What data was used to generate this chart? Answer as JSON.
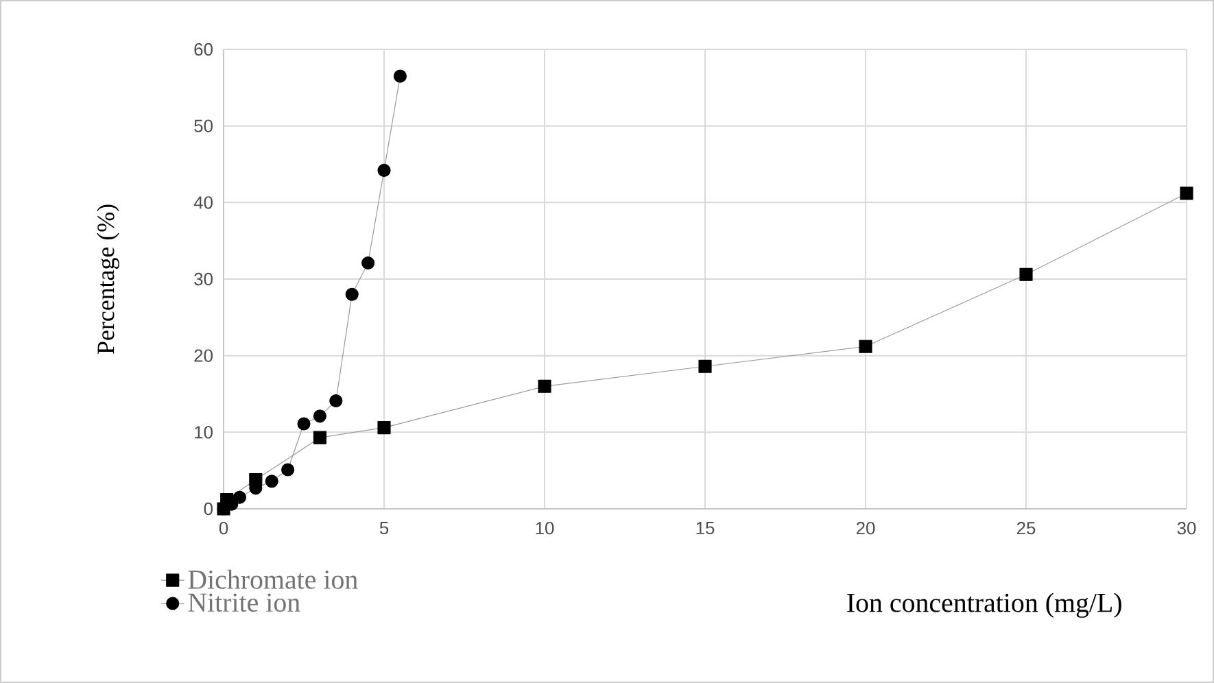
{
  "chart_data": {
    "type": "line",
    "xlabel": "Ion concentration (mg/L)",
    "ylabel": "Percentage (%)",
    "series": [
      {
        "name": "Dichromate ion",
        "color": "#000000",
        "marker": "square",
        "x": [
          0,
          0.1,
          1,
          3,
          5,
          10,
          15,
          20,
          25,
          30
        ],
        "values": [
          0,
          1.2,
          3.8,
          9.3,
          10.6,
          16,
          18.6,
          21.2,
          30.6,
          41.2
        ]
      },
      {
        "name": "Nitrite ion",
        "color": "#000000",
        "marker": "circle",
        "x": [
          0,
          0.25,
          0.5,
          1,
          1.5,
          2,
          2.5,
          3,
          3.5,
          4,
          4.5,
          5,
          5.5
        ],
        "values": [
          0,
          0.6,
          1.5,
          2.7,
          3.6,
          5.1,
          11.1,
          12.1,
          14.1,
          28,
          32.1,
          44.2,
          56.5
        ]
      }
    ],
    "xlim": [
      0,
      30
    ],
    "xticks": [
      0,
      5,
      10,
      15,
      20,
      25,
      30
    ],
    "ylim": [
      0,
      60
    ],
    "yticks": [
      0,
      10,
      20,
      30,
      40,
      50,
      60
    ],
    "grid": true,
    "legend": "bottom left",
    "line_style": "solid"
  }
}
